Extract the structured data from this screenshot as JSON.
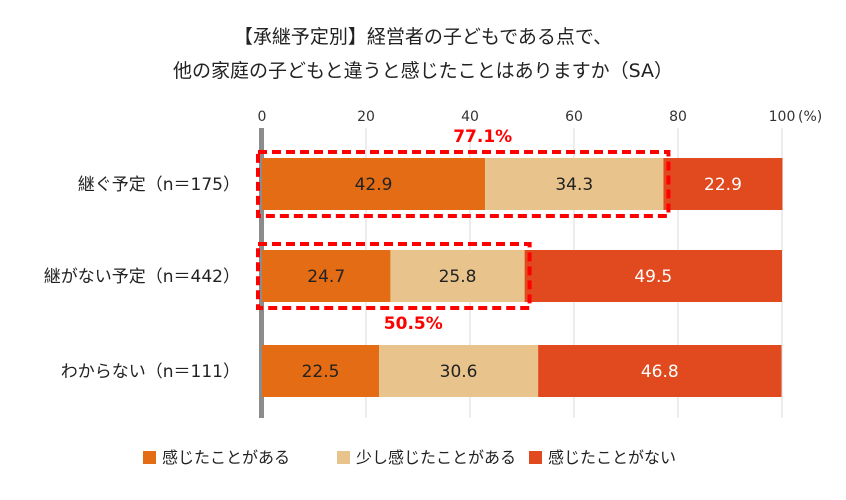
{
  "chart_data": {
    "type": "bar",
    "orientation": "horizontal",
    "stacked": true,
    "title_lines": [
      "【承継予定別】経営者の子どもである点で、",
      "他の家庭の子どもと違うと感じたことはありますか（SA）"
    ],
    "unit_label": "(%)",
    "xlim": [
      0,
      100
    ],
    "xticks": [
      0,
      20,
      40,
      60,
      80,
      100
    ],
    "grid": true,
    "categories": [
      "継ぐ予定（n＝175）",
      "継がない予定（n＝442）",
      "わからない（n＝111）"
    ],
    "series": [
      {
        "name": "感じたことがある",
        "color": "#e46c14",
        "label_color": "#222222",
        "values": [
          42.9,
          24.7,
          22.5
        ]
      },
      {
        "name": "少し感じたことがある",
        "color": "#e8c48c",
        "label_color": "#222222",
        "values": [
          34.3,
          25.8,
          30.6
        ]
      },
      {
        "name": "感じたことがない",
        "color": "#e04a1e",
        "label_color": "#ffffff",
        "values": [
          22.9,
          49.5,
          46.8
        ]
      }
    ],
    "annotations": [
      {
        "category_index": 0,
        "text": "77.1%",
        "position": "above",
        "series_count": 2
      },
      {
        "category_index": 1,
        "text": "50.5%",
        "position": "below",
        "series_count": 2
      }
    ],
    "highlight_color": "#ff0000",
    "legend_position": "bottom"
  }
}
